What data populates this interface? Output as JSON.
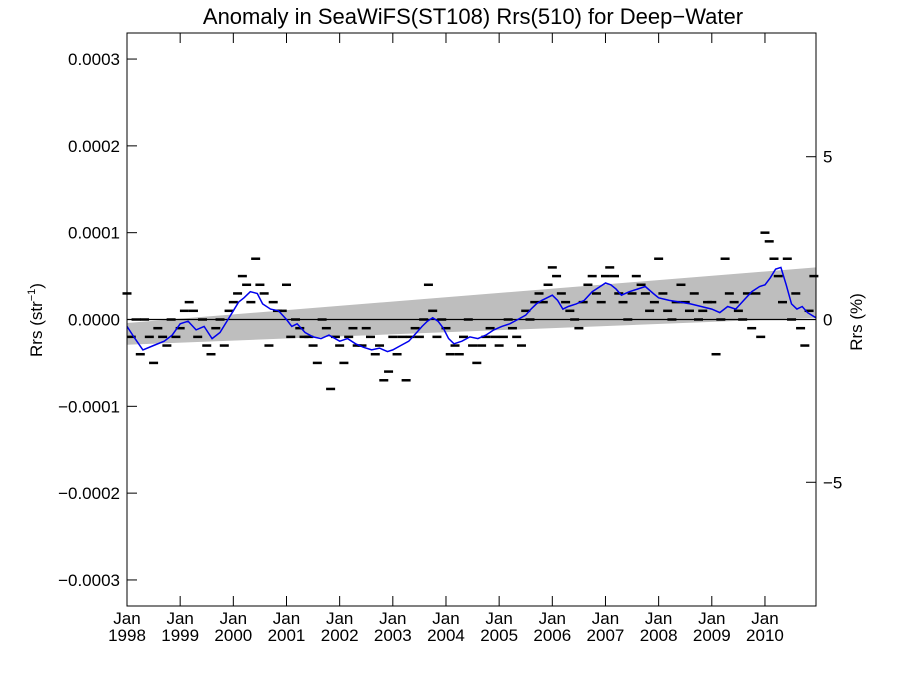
{
  "chart_data": {
    "type": "line",
    "title": "Anomaly in SeaWiFS(ST108) Rrs(510) for Deep−Water",
    "ylabel_left": {
      "base": "Rrs (str",
      "sup": "−1",
      "close": ")"
    },
    "ylabel_right": "Rrs (%)",
    "xlabel": "",
    "xlim": [
      1998.0,
      2010.96
    ],
    "ylim_left": [
      -0.00033,
      0.00033
    ],
    "ylim_right": [
      -8.8,
      8.8
    ],
    "yticks_left": [
      {
        "value": 0.0003,
        "label": "0.0003"
      },
      {
        "value": 0.0002,
        "label": "0.0002"
      },
      {
        "value": 0.0001,
        "label": "0.0001"
      },
      {
        "value": 0.0,
        "label": "0.0000"
      },
      {
        "value": -0.0001,
        "label": "−0.0001"
      },
      {
        "value": -0.0002,
        "label": "−0.0002"
      },
      {
        "value": -0.0003,
        "label": "−0.0003"
      }
    ],
    "yticks_right": [
      {
        "value": 5,
        "label": "5"
      },
      {
        "value": 0,
        "label": "0"
      },
      {
        "value": -5,
        "label": "−5"
      }
    ],
    "xticks": [
      {
        "value": 1998,
        "month": "Jan",
        "year": "1998"
      },
      {
        "value": 1999,
        "month": "Jan",
        "year": "1999"
      },
      {
        "value": 2000,
        "month": "Jan",
        "year": "2000"
      },
      {
        "value": 2001,
        "month": "Jan",
        "year": "2001"
      },
      {
        "value": 2002,
        "month": "Jan",
        "year": "2002"
      },
      {
        "value": 2003,
        "month": "Jan",
        "year": "2003"
      },
      {
        "value": 2004,
        "month": "Jan",
        "year": "2004"
      },
      {
        "value": 2005,
        "month": "Jan",
        "year": "2005"
      },
      {
        "value": 2006,
        "month": "Jan",
        "year": "2006"
      },
      {
        "value": 2007,
        "month": "Jan",
        "year": "2007"
      },
      {
        "value": 2008,
        "month": "Jan",
        "year": "2008"
      },
      {
        "value": 2009,
        "month": "Jan",
        "year": "2009"
      },
      {
        "value": 2010,
        "month": "Jan",
        "year": "2010"
      }
    ],
    "zero_line": 0.0,
    "trend_band": {
      "upper": [
        [
          1998.0,
          -4e-06
        ],
        [
          2010.96,
          6e-05
        ]
      ],
      "lower": [
        [
          1998.0,
          -2.9e-05
        ],
        [
          2010.96,
          2e-06
        ]
      ]
    },
    "series": [
      {
        "kind": "monthly_anomaly_markers",
        "color": "#000000",
        "points": [
          [
            1998.0,
            3e-05
          ],
          [
            1998.08,
            -2e-05
          ],
          [
            1998.17,
            0.0
          ],
          [
            1998.25,
            -4e-05
          ],
          [
            1998.33,
            0.0
          ],
          [
            1998.42,
            -2e-05
          ],
          [
            1998.5,
            -5e-05
          ],
          [
            1998.58,
            -1e-05
          ],
          [
            1998.67,
            -2e-05
          ],
          [
            1998.75,
            -3e-05
          ],
          [
            1998.83,
            0.0
          ],
          [
            1998.92,
            -2e-05
          ],
          [
            1999.0,
            -1e-05
          ],
          [
            1999.08,
            1e-05
          ],
          [
            1999.17,
            2e-05
          ],
          [
            1999.25,
            1e-05
          ],
          [
            1999.33,
            -2e-05
          ],
          [
            1999.42,
            0.0
          ],
          [
            1999.5,
            -3e-05
          ],
          [
            1999.58,
            -4e-05
          ],
          [
            1999.67,
            -1e-05
          ],
          [
            1999.75,
            0.0
          ],
          [
            1999.83,
            -3e-05
          ],
          [
            1999.92,
            1e-05
          ],
          [
            2000.0,
            2e-05
          ],
          [
            2000.08,
            3e-05
          ],
          [
            2000.17,
            5e-05
          ],
          [
            2000.25,
            4e-05
          ],
          [
            2000.33,
            2e-05
          ],
          [
            2000.42,
            7e-05
          ],
          [
            2000.5,
            4e-05
          ],
          [
            2000.58,
            3e-05
          ],
          [
            2000.67,
            -3e-05
          ],
          [
            2000.75,
            2e-05
          ],
          [
            2000.83,
            1e-05
          ],
          [
            2000.92,
            1e-05
          ],
          [
            2001.0,
            4e-05
          ],
          [
            2001.08,
            -2e-05
          ],
          [
            2001.17,
            0.0
          ],
          [
            2001.25,
            -1e-05
          ],
          [
            2001.33,
            -2e-05
          ],
          [
            2001.42,
            -2e-05
          ],
          [
            2001.5,
            -3e-05
          ],
          [
            2001.58,
            -5e-05
          ],
          [
            2001.67,
            0.0
          ],
          [
            2001.75,
            -1e-05
          ],
          [
            2001.83,
            -8e-05
          ],
          [
            2001.92,
            -2e-05
          ],
          [
            2002.0,
            -3e-05
          ],
          [
            2002.08,
            -5e-05
          ],
          [
            2002.17,
            -2e-05
          ],
          [
            2002.25,
            -1e-05
          ],
          [
            2002.33,
            -3e-05
          ],
          [
            2002.42,
            -3e-05
          ],
          [
            2002.5,
            -1e-05
          ],
          [
            2002.58,
            -2e-05
          ],
          [
            2002.67,
            -4e-05
          ],
          [
            2002.75,
            -3e-05
          ],
          [
            2002.83,
            -7e-05
          ],
          [
            2002.92,
            -6e-05
          ],
          [
            2003.0,
            -2e-05
          ],
          [
            2003.08,
            -4e-05
          ],
          [
            2003.17,
            -2e-05
          ],
          [
            2003.25,
            -7e-05
          ],
          [
            2003.33,
            -2e-05
          ],
          [
            2003.42,
            -1e-05
          ],
          [
            2003.5,
            -2e-05
          ],
          [
            2003.58,
            0.0
          ],
          [
            2003.67,
            4e-05
          ],
          [
            2003.75,
            1e-05
          ],
          [
            2003.83,
            -2e-05
          ],
          [
            2003.92,
            0.0
          ],
          [
            2004.0,
            -1e-05
          ],
          [
            2004.08,
            -4e-05
          ],
          [
            2004.17,
            -3e-05
          ],
          [
            2004.25,
            -4e-05
          ],
          [
            2004.33,
            -2e-05
          ],
          [
            2004.42,
            0.0
          ],
          [
            2004.5,
            -3e-05
          ],
          [
            2004.58,
            -5e-05
          ],
          [
            2004.67,
            -3e-05
          ],
          [
            2004.75,
            -2e-05
          ],
          [
            2004.83,
            -1e-05
          ],
          [
            2004.92,
            -2e-05
          ],
          [
            2005.0,
            -3e-05
          ],
          [
            2005.08,
            -2e-05
          ],
          [
            2005.17,
            0.0
          ],
          [
            2005.25,
            -1e-05
          ],
          [
            2005.33,
            -2e-05
          ],
          [
            2005.42,
            -3e-05
          ],
          [
            2005.5,
            1e-05
          ],
          [
            2005.58,
            0.0
          ],
          [
            2005.67,
            2e-05
          ],
          [
            2005.75,
            3e-05
          ],
          [
            2005.83,
            2e-05
          ],
          [
            2005.92,
            4e-05
          ],
          [
            2006.0,
            6e-05
          ],
          [
            2006.08,
            5e-05
          ],
          [
            2006.17,
            3e-05
          ],
          [
            2006.25,
            2e-05
          ],
          [
            2006.33,
            1e-05
          ],
          [
            2006.42,
            0.0
          ],
          [
            2006.5,
            -1e-05
          ],
          [
            2006.58,
            2e-05
          ],
          [
            2006.67,
            4e-05
          ],
          [
            2006.75,
            5e-05
          ],
          [
            2006.83,
            3e-05
          ],
          [
            2006.92,
            2e-05
          ],
          [
            2007.0,
            5e-05
          ],
          [
            2007.08,
            6e-05
          ],
          [
            2007.17,
            5e-05
          ],
          [
            2007.25,
            3e-05
          ],
          [
            2007.33,
            2e-05
          ],
          [
            2007.42,
            0.0
          ],
          [
            2007.5,
            3e-05
          ],
          [
            2007.58,
            5e-05
          ],
          [
            2007.67,
            4e-05
          ],
          [
            2007.75,
            3e-05
          ],
          [
            2007.83,
            1e-05
          ],
          [
            2007.92,
            2e-05
          ],
          [
            2008.0,
            7e-05
          ],
          [
            2008.08,
            3e-05
          ],
          [
            2008.17,
            1e-05
          ],
          [
            2008.25,
            0.0
          ],
          [
            2008.33,
            2e-05
          ],
          [
            2008.42,
            4e-05
          ],
          [
            2008.5,
            2e-05
          ],
          [
            2008.58,
            1e-05
          ],
          [
            2008.67,
            3e-05
          ],
          [
            2008.75,
            0.0
          ],
          [
            2008.83,
            1e-05
          ],
          [
            2008.92,
            2e-05
          ],
          [
            2009.0,
            2e-05
          ],
          [
            2009.08,
            -4e-05
          ],
          [
            2009.17,
            0.0
          ],
          [
            2009.25,
            7e-05
          ],
          [
            2009.33,
            3e-05
          ],
          [
            2009.42,
            2e-05
          ],
          [
            2009.5,
            1e-05
          ],
          [
            2009.58,
            0.0
          ],
          [
            2009.67,
            3e-05
          ],
          [
            2009.75,
            -1e-05
          ],
          [
            2009.83,
            3e-05
          ],
          [
            2009.92,
            -2e-05
          ],
          [
            2010.0,
            0.0001
          ],
          [
            2010.08,
            9e-05
          ],
          [
            2010.17,
            7e-05
          ],
          [
            2010.25,
            5e-05
          ],
          [
            2010.33,
            2e-05
          ],
          [
            2010.42,
            7e-05
          ],
          [
            2010.5,
            0.0
          ],
          [
            2010.58,
            3e-05
          ],
          [
            2010.67,
            -1e-05
          ],
          [
            2010.75,
            -3e-05
          ],
          [
            2010.83,
            1e-05
          ],
          [
            2010.92,
            5e-05
          ]
        ]
      },
      {
        "kind": "running_mean",
        "color": "#0000ee",
        "points": [
          [
            1998.0,
            -8e-06
          ],
          [
            1998.15,
            -2.2e-05
          ],
          [
            1998.3,
            -3.5e-05
          ],
          [
            1998.5,
            -3e-05
          ],
          [
            1998.7,
            -2.5e-05
          ],
          [
            1998.85,
            -1.8e-05
          ],
          [
            1999.0,
            -5e-06
          ],
          [
            1999.15,
            -2e-06
          ],
          [
            1999.3,
            -1.2e-05
          ],
          [
            1999.45,
            -8e-06
          ],
          [
            1999.6,
            -2.2e-05
          ],
          [
            1999.75,
            -1.5e-05
          ],
          [
            1999.9,
            0.0
          ],
          [
            2000.0,
            1e-05
          ],
          [
            2000.1,
            2e-05
          ],
          [
            2000.2,
            2.5e-05
          ],
          [
            2000.32,
            3.2e-05
          ],
          [
            2000.45,
            3e-05
          ],
          [
            2000.55,
            1.8e-05
          ],
          [
            2000.7,
            1.2e-05
          ],
          [
            2000.85,
            1e-05
          ],
          [
            2001.0,
            0.0
          ],
          [
            2001.1,
            -8e-06
          ],
          [
            2001.2,
            -5e-06
          ],
          [
            2001.35,
            -1.5e-05
          ],
          [
            2001.5,
            -2e-05
          ],
          [
            2001.65,
            -2.2e-05
          ],
          [
            2001.8,
            -1.8e-05
          ],
          [
            2002.0,
            -2.5e-05
          ],
          [
            2002.15,
            -2.2e-05
          ],
          [
            2002.3,
            -2.8e-05
          ],
          [
            2002.45,
            -3.2e-05
          ],
          [
            2002.6,
            -3.5e-05
          ],
          [
            2002.75,
            -3.3e-05
          ],
          [
            2002.9,
            -3.7e-05
          ],
          [
            2003.0,
            -3.5e-05
          ],
          [
            2003.15,
            -3e-05
          ],
          [
            2003.3,
            -2.5e-05
          ],
          [
            2003.45,
            -1.5e-05
          ],
          [
            2003.55,
            -8e-06
          ],
          [
            2003.65,
            -2e-06
          ],
          [
            2003.75,
            2e-06
          ],
          [
            2003.85,
            -2e-06
          ],
          [
            2003.95,
            -1e-05
          ],
          [
            2004.05,
            -2.2e-05
          ],
          [
            2004.15,
            -2.8e-05
          ],
          [
            2004.3,
            -2.5e-05
          ],
          [
            2004.45,
            -2e-05
          ],
          [
            2004.6,
            -2.2e-05
          ],
          [
            2004.75,
            -1.8e-05
          ],
          [
            2004.9,
            -1.2e-05
          ],
          [
            2005.05,
            -8e-06
          ],
          [
            2005.2,
            -5e-06
          ],
          [
            2005.35,
            0.0
          ],
          [
            2005.5,
            5e-06
          ],
          [
            2005.6,
            1.2e-05
          ],
          [
            2005.7,
            1.8e-05
          ],
          [
            2005.8,
            2.2e-05
          ],
          [
            2005.9,
            2.5e-05
          ],
          [
            2006.0,
            2.8e-05
          ],
          [
            2006.1,
            2.2e-05
          ],
          [
            2006.2,
            1.2e-05
          ],
          [
            2006.3,
            1.5e-05
          ],
          [
            2006.45,
            1.8e-05
          ],
          [
            2006.6,
            2.2e-05
          ],
          [
            2006.75,
            3.2e-05
          ],
          [
            2006.9,
            3.8e-05
          ],
          [
            2007.0,
            4.2e-05
          ],
          [
            2007.1,
            4e-05
          ],
          [
            2007.2,
            3.5e-05
          ],
          [
            2007.3,
            2.8e-05
          ],
          [
            2007.45,
            3.2e-05
          ],
          [
            2007.6,
            3.5e-05
          ],
          [
            2007.75,
            3.8e-05
          ],
          [
            2007.9,
            3e-05
          ],
          [
            2008.0,
            2.5e-05
          ],
          [
            2008.2,
            2.2e-05
          ],
          [
            2008.4,
            2e-05
          ],
          [
            2008.6,
            1.8e-05
          ],
          [
            2008.8,
            1.5e-05
          ],
          [
            2009.0,
            1.2e-05
          ],
          [
            2009.15,
            8e-06
          ],
          [
            2009.3,
            1.5e-05
          ],
          [
            2009.45,
            1.2e-05
          ],
          [
            2009.6,
            2.2e-05
          ],
          [
            2009.75,
            3.2e-05
          ],
          [
            2009.9,
            3.8e-05
          ],
          [
            2010.0,
            4e-05
          ],
          [
            2010.1,
            4.8e-05
          ],
          [
            2010.2,
            5.8e-05
          ],
          [
            2010.3,
            6e-05
          ],
          [
            2010.4,
            4e-05
          ],
          [
            2010.5,
            1.8e-05
          ],
          [
            2010.6,
            1.2e-05
          ],
          [
            2010.7,
            1.5e-05
          ],
          [
            2010.8,
            8e-06
          ],
          [
            2010.96,
            2e-06
          ]
        ]
      }
    ]
  }
}
